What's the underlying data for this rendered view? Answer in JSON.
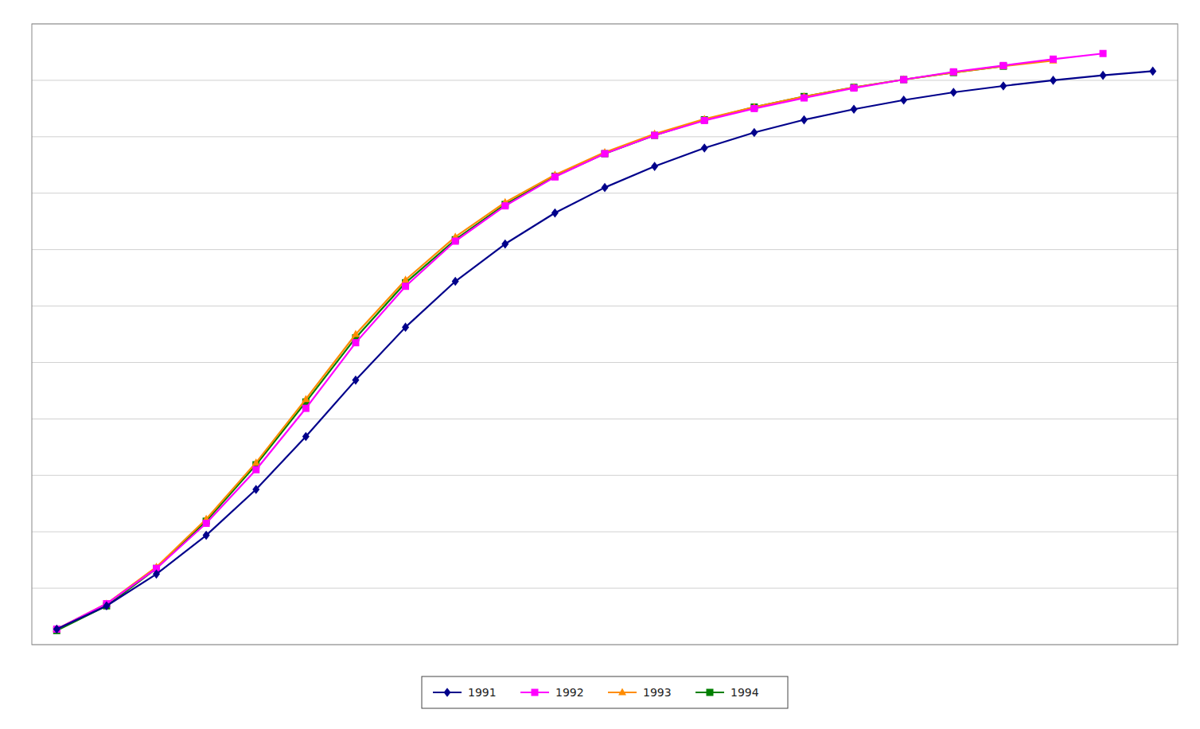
{
  "chart_data": {
    "type": "line",
    "x": [
      1,
      2,
      3,
      4,
      5,
      6,
      7,
      8,
      9,
      10,
      11,
      12,
      13,
      14,
      15,
      16,
      17,
      18,
      19,
      20,
      21,
      22,
      23
    ],
    "series": [
      {
        "name": "1991",
        "color": "#00008B",
        "marker": "diamond",
        "values": [
          0.022,
          0.055,
          0.1,
          0.155,
          0.22,
          0.295,
          0.375,
          0.45,
          0.515,
          0.568,
          0.612,
          0.648,
          0.678,
          0.704,
          0.726,
          0.744,
          0.759,
          0.772,
          0.783,
          0.792,
          0.8,
          0.807,
          0.813
        ]
      },
      {
        "name": "1992",
        "color": "#FF00FF",
        "marker": "square",
        "values": [
          0.022,
          0.058,
          0.108,
          0.172,
          0.248,
          0.335,
          0.428,
          0.508,
          0.572,
          0.622,
          0.663,
          0.696,
          0.722,
          0.743,
          0.76,
          0.775,
          0.789,
          0.801,
          0.812,
          0.821,
          0.83,
          0.838,
          null
        ]
      },
      {
        "name": "1993",
        "color": "#FF8C00",
        "marker": "triangle",
        "values": [
          0.022,
          0.058,
          0.11,
          0.178,
          0.258,
          0.348,
          0.44,
          0.517,
          0.578,
          0.627,
          0.666,
          0.698,
          0.724,
          0.745,
          0.762,
          0.777,
          0.79,
          0.801,
          0.811,
          0.82,
          0.828,
          null,
          null
        ]
      },
      {
        "name": "1994",
        "color": "#008000",
        "marker": "square",
        "values": [
          0.02,
          0.055,
          0.108,
          0.175,
          0.255,
          0.344,
          0.435,
          0.513,
          0.574,
          0.624,
          0.664,
          0.696,
          0.722,
          0.744,
          0.762,
          0.777,
          0.79,
          0.801,
          0.811,
          0.82,
          null,
          null,
          null
        ]
      }
    ],
    "xlim": [
      0.5,
      23.5
    ],
    "ylim": [
      0.0,
      0.88
    ],
    "yticks": [
      0,
      0.08,
      0.16,
      0.24,
      0.32,
      0.4,
      0.48,
      0.56,
      0.64,
      0.72,
      0.8,
      0.88
    ],
    "grid": true,
    "tick_labels": false,
    "legend": "bottom"
  }
}
